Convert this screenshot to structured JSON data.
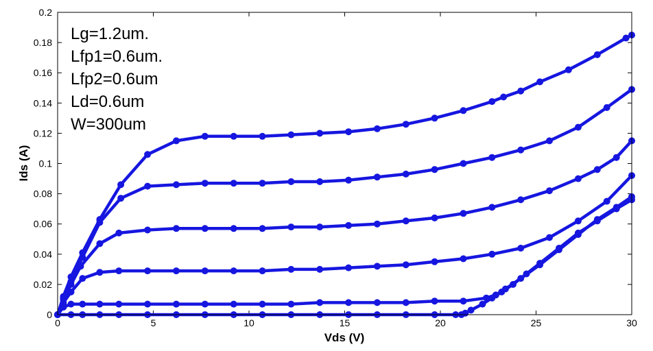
{
  "chart_data": {
    "type": "line",
    "xlabel": "Vds (V)",
    "ylabel": "Ids (A)",
    "xlim": [
      0,
      30
    ],
    "ylim": [
      0,
      0.2
    ],
    "x_ticks": [
      "0",
      "5",
      "10",
      "15",
      "20",
      "25",
      "30"
    ],
    "y_ticks": [
      "0",
      "0.02",
      "0.04",
      "0.06",
      "0.08",
      "0.1",
      "0.12",
      "0.14",
      "0.16",
      "0.18",
      "0.2"
    ],
    "grid": false,
    "line_color": "#1616e0",
    "annotations": [
      "Lg=1.2um.",
      "Lfp1=0.6um.",
      "Lfp2=0.6um",
      "Ld=0.6um",
      "W=300um"
    ],
    "series": [
      {
        "values": [
          [
            0,
            0
          ],
          [
            0.3,
            0.012
          ],
          [
            0.7,
            0.025
          ],
          [
            1.3,
            0.041
          ],
          [
            2.2,
            0.063
          ],
          [
            3.3,
            0.086
          ],
          [
            4.7,
            0.106
          ],
          [
            6.2,
            0.115
          ],
          [
            7.7,
            0.118
          ],
          [
            9.2,
            0.118
          ],
          [
            10.7,
            0.118
          ],
          [
            12.2,
            0.119
          ],
          [
            13.7,
            0.12
          ],
          [
            15.2,
            0.121
          ],
          [
            16.7,
            0.123
          ],
          [
            18.2,
            0.126
          ],
          [
            19.7,
            0.13
          ],
          [
            21.2,
            0.135
          ],
          [
            22.7,
            0.141
          ],
          [
            23.3,
            0.144
          ],
          [
            24.2,
            0.148
          ],
          [
            25.2,
            0.154
          ],
          [
            26.7,
            0.162
          ],
          [
            28.2,
            0.172
          ],
          [
            29.7,
            0.183
          ],
          [
            30,
            0.185
          ]
        ]
      },
      {
        "values": [
          [
            0,
            0
          ],
          [
            0.3,
            0.011
          ],
          [
            0.7,
            0.022
          ],
          [
            1.3,
            0.038
          ],
          [
            2.2,
            0.061
          ],
          [
            3.3,
            0.077
          ],
          [
            4.7,
            0.085
          ],
          [
            6.2,
            0.086
          ],
          [
            7.7,
            0.087
          ],
          [
            9.2,
            0.087
          ],
          [
            10.7,
            0.087
          ],
          [
            12.2,
            0.088
          ],
          [
            13.7,
            0.088
          ],
          [
            15.2,
            0.089
          ],
          [
            16.7,
            0.091
          ],
          [
            18.2,
            0.093
          ],
          [
            19.7,
            0.096
          ],
          [
            21.2,
            0.1
          ],
          [
            22.7,
            0.104
          ],
          [
            24.2,
            0.109
          ],
          [
            25.7,
            0.115
          ],
          [
            27.2,
            0.124
          ],
          [
            28.7,
            0.137
          ],
          [
            30,
            0.149
          ]
        ]
      },
      {
        "values": [
          [
            0,
            0
          ],
          [
            0.3,
            0.01
          ],
          [
            0.7,
            0.02
          ],
          [
            1.2,
            0.032
          ],
          [
            2.2,
            0.047
          ],
          [
            3.2,
            0.054
          ],
          [
            4.7,
            0.056
          ],
          [
            6.2,
            0.057
          ],
          [
            7.7,
            0.057
          ],
          [
            9.2,
            0.057
          ],
          [
            10.7,
            0.057
          ],
          [
            12.2,
            0.058
          ],
          [
            13.7,
            0.058
          ],
          [
            15.2,
            0.059
          ],
          [
            16.7,
            0.06
          ],
          [
            18.2,
            0.062
          ],
          [
            19.7,
            0.064
          ],
          [
            21.2,
            0.067
          ],
          [
            22.7,
            0.071
          ],
          [
            24.2,
            0.076
          ],
          [
            25.7,
            0.082
          ],
          [
            27.2,
            0.09
          ],
          [
            28.2,
            0.096
          ],
          [
            29.2,
            0.104
          ],
          [
            30,
            0.115
          ]
        ]
      },
      {
        "values": [
          [
            0,
            0
          ],
          [
            0.3,
            0.008
          ],
          [
            0.7,
            0.015
          ],
          [
            1.3,
            0.024
          ],
          [
            2.2,
            0.028
          ],
          [
            3.2,
            0.029
          ],
          [
            4.7,
            0.029
          ],
          [
            6.2,
            0.029
          ],
          [
            7.7,
            0.029
          ],
          [
            9.2,
            0.029
          ],
          [
            10.7,
            0.029
          ],
          [
            12.2,
            0.03
          ],
          [
            13.7,
            0.03
          ],
          [
            15.2,
            0.031
          ],
          [
            16.7,
            0.032
          ],
          [
            18.2,
            0.033
          ],
          [
            19.7,
            0.035
          ],
          [
            21.2,
            0.037
          ],
          [
            22.7,
            0.04
          ],
          [
            24.2,
            0.044
          ],
          [
            25.7,
            0.051
          ],
          [
            27.2,
            0.062
          ],
          [
            28.7,
            0.075
          ],
          [
            30,
            0.092
          ]
        ]
      },
      {
        "values": [
          [
            0,
            0
          ],
          [
            0.3,
            0.005
          ],
          [
            0.7,
            0.007
          ],
          [
            1.3,
            0.007
          ],
          [
            2.2,
            0.007
          ],
          [
            3.2,
            0.007
          ],
          [
            4.7,
            0.007
          ],
          [
            6.2,
            0.007
          ],
          [
            7.7,
            0.007
          ],
          [
            9.2,
            0.007
          ],
          [
            10.7,
            0.007
          ],
          [
            12.2,
            0.007
          ],
          [
            13.7,
            0.008
          ],
          [
            15.2,
            0.008
          ],
          [
            16.7,
            0.008
          ],
          [
            18.2,
            0.008
          ],
          [
            19.7,
            0.009
          ],
          [
            21.2,
            0.009
          ],
          [
            22.4,
            0.011
          ],
          [
            22.9,
            0.013
          ],
          [
            23.4,
            0.017
          ],
          [
            24.2,
            0.024
          ],
          [
            25.2,
            0.033
          ],
          [
            26.2,
            0.043
          ],
          [
            27.2,
            0.053
          ],
          [
            28.2,
            0.063
          ],
          [
            29.2,
            0.071
          ],
          [
            30,
            0.078
          ]
        ]
      },
      {
        "values": [
          [
            0,
            0
          ],
          [
            0.7,
            0
          ],
          [
            1.3,
            0
          ],
          [
            2.2,
            0
          ],
          [
            3.2,
            0
          ],
          [
            4.7,
            0
          ],
          [
            6.2,
            0
          ],
          [
            7.7,
            0
          ],
          [
            9.2,
            0
          ],
          [
            10.7,
            0
          ],
          [
            12.2,
            0
          ],
          [
            13.7,
            0
          ],
          [
            15.2,
            0
          ],
          [
            16.7,
            0
          ],
          [
            18.2,
            0
          ],
          [
            19.7,
            0
          ],
          [
            20.8,
            0
          ],
          [
            21.1,
            0
          ],
          [
            21.3,
            0.001
          ],
          [
            21.6,
            0.003
          ],
          [
            22.2,
            0.007
          ],
          [
            22.7,
            0.011
          ],
          [
            23.2,
            0.015
          ],
          [
            23.8,
            0.02
          ],
          [
            24.5,
            0.027
          ],
          [
            25.2,
            0.034
          ],
          [
            26.2,
            0.044
          ],
          [
            27.2,
            0.054
          ],
          [
            28.2,
            0.062
          ],
          [
            29.2,
            0.07
          ],
          [
            30,
            0.076
          ]
        ]
      }
    ]
  }
}
